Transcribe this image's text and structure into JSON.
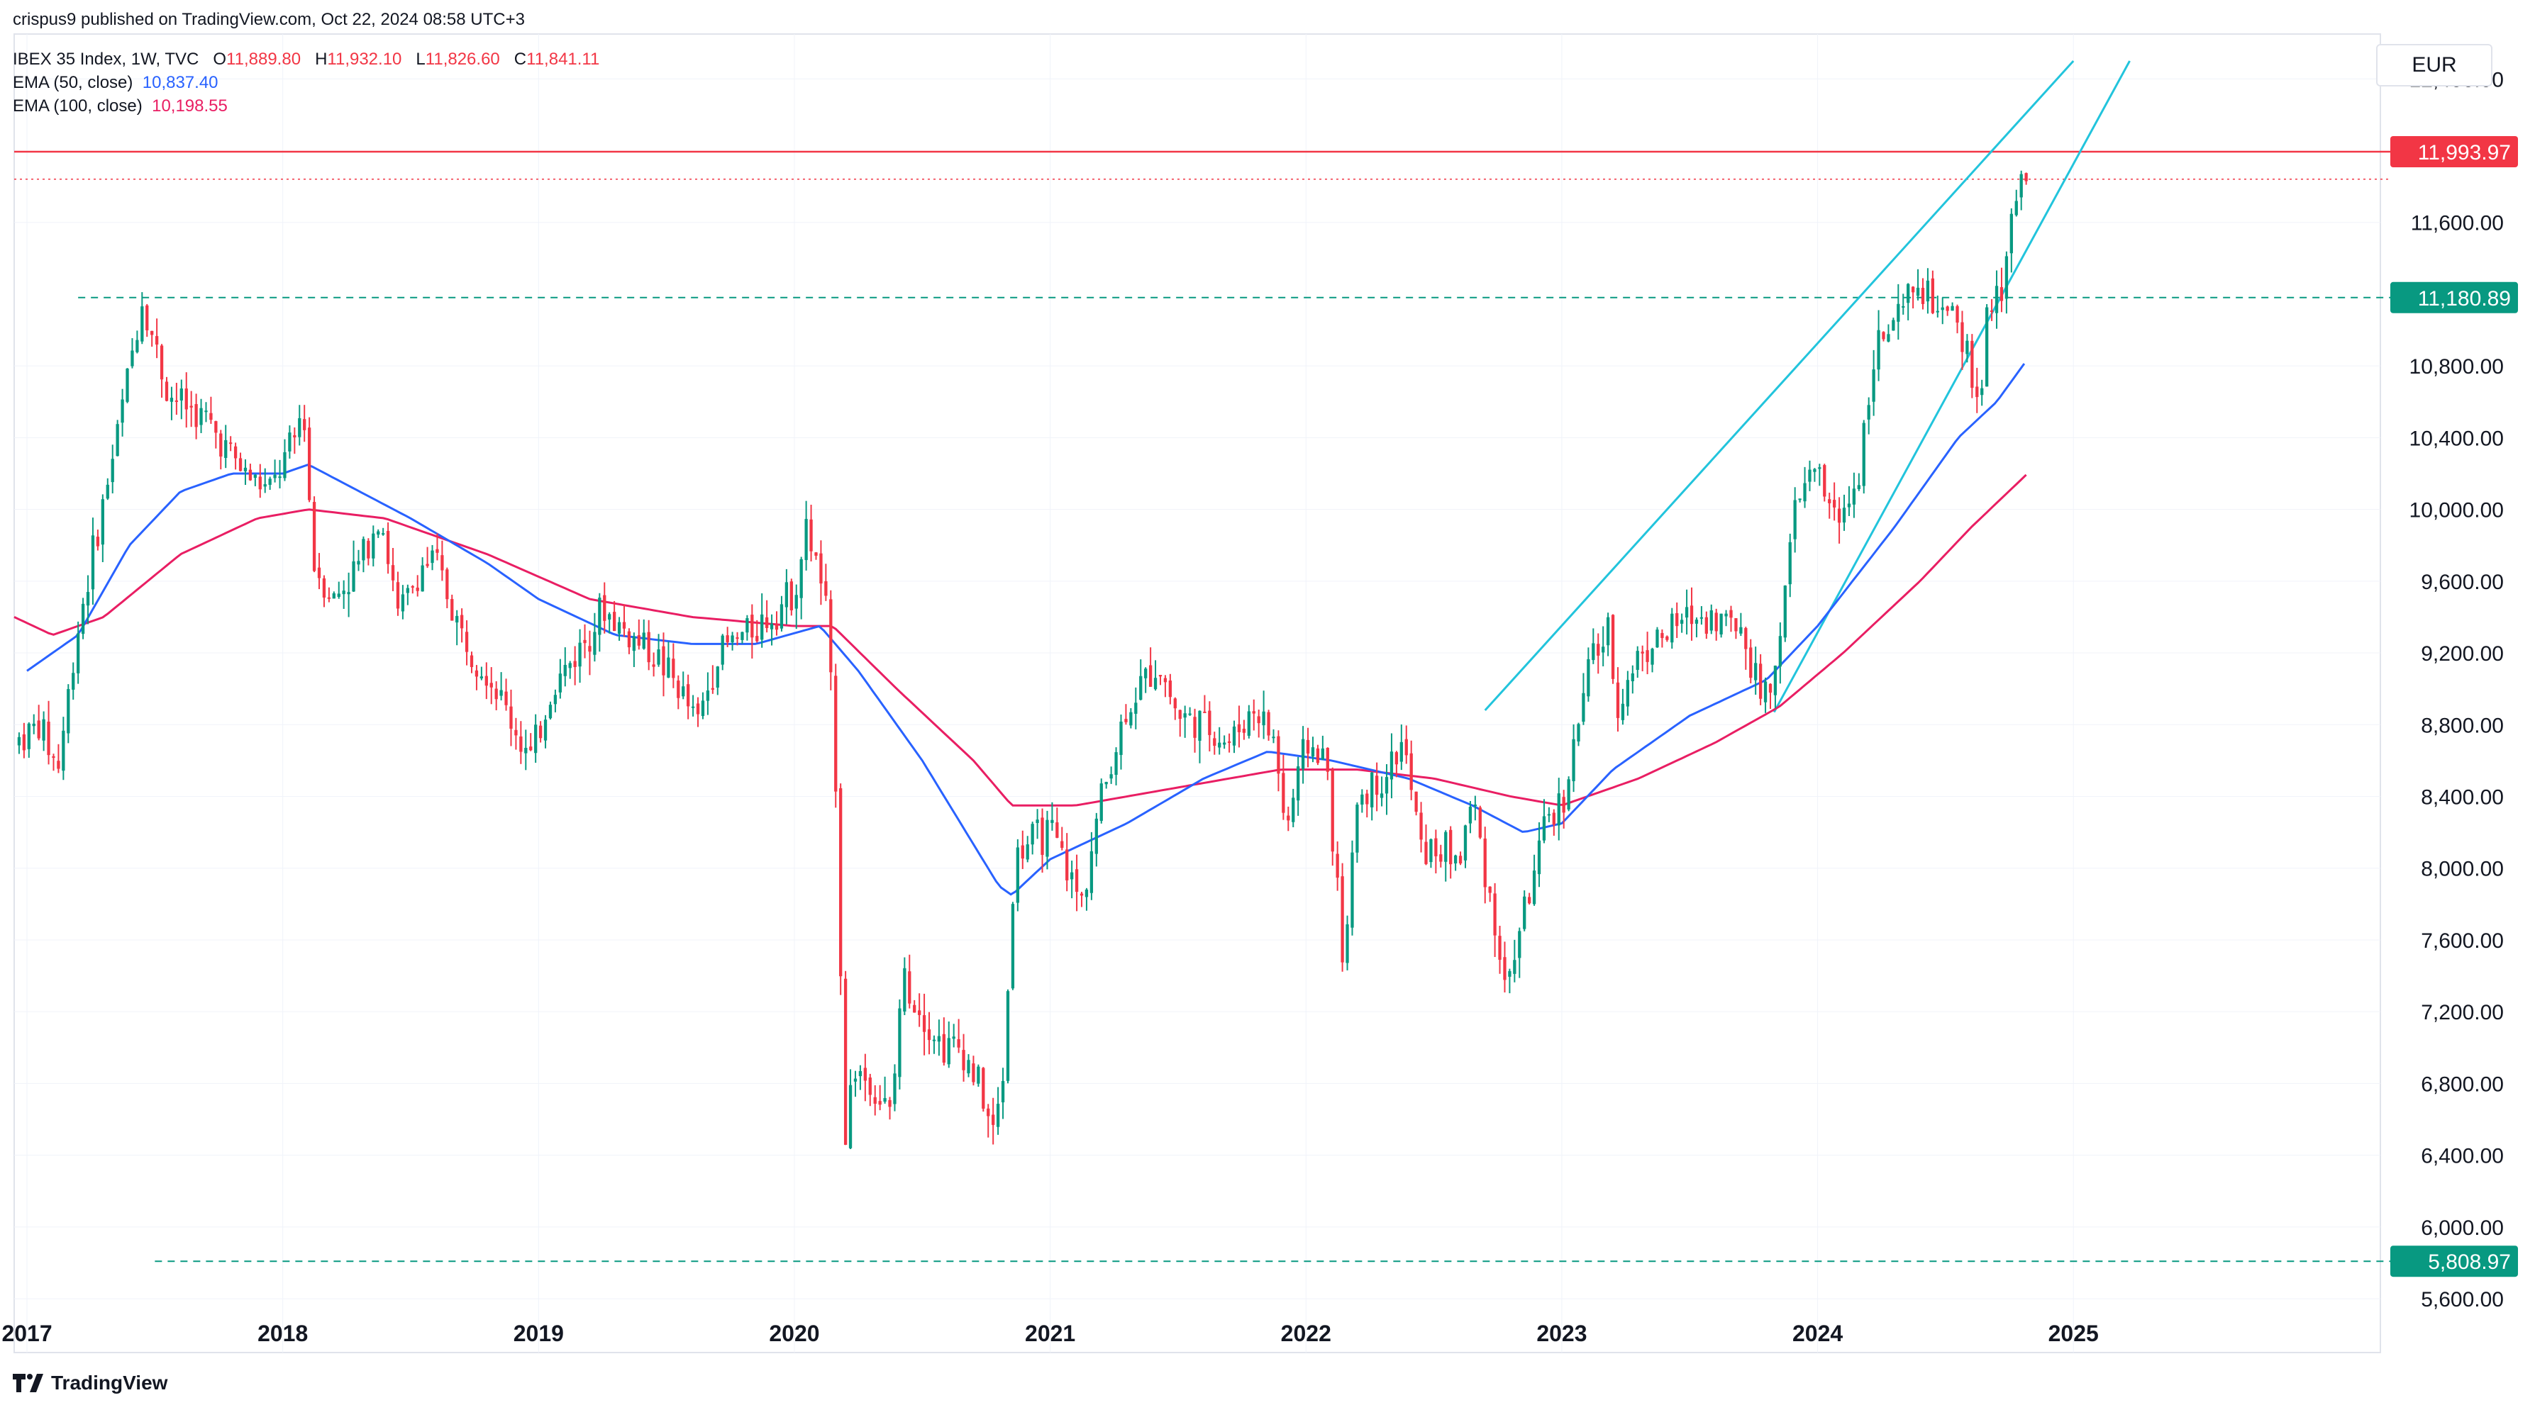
{
  "header": {
    "publisher_line": "crispus9 published on TradingView.com, Oct 22, 2024 08:58 UTC+3",
    "symbol": "IBEX 35 Index, 1W, TVC",
    "open_label": "O",
    "open": "11,889.80",
    "high_label": "H",
    "high": "11,932.10",
    "low_label": "L",
    "low": "11,826.60",
    "close_label": "C",
    "close": "11,841.11",
    "ema50_label": "EMA (50, close)",
    "ema50_value": "10,837.40",
    "ema100_label": "EMA (100, close)",
    "ema100_value": "10,198.55"
  },
  "currency": "EUR",
  "footer": {
    "brand": "TradingView"
  },
  "chart_data": {
    "type": "candlestick",
    "interval": "1W",
    "ylim": [
      5300,
      12650
    ],
    "xlim": [
      2016.95,
      2026.2
    ],
    "y_ticks": [
      "12,400.00",
      "11,600.00",
      "10,800.00",
      "10,400.00",
      "10,000.00",
      "9,600.00",
      "9,200.00",
      "8,800.00",
      "8,400.00",
      "8,000.00",
      "7,600.00",
      "7,200.00",
      "6,800.00",
      "6,400.00",
      "6,000.00",
      "5,600.00"
    ],
    "y_tick_values": [
      12400,
      11600,
      10800,
      10400,
      10000,
      9600,
      9200,
      8800,
      8400,
      8000,
      7600,
      7200,
      6800,
      6400,
      6000,
      5600
    ],
    "x_ticks": [
      "2017",
      "2018",
      "2019",
      "2020",
      "2021",
      "2022",
      "2023",
      "2024",
      "2025"
    ],
    "x_tick_values": [
      2017,
      2018,
      2019,
      2020,
      2021,
      2022,
      2023,
      2024,
      2025
    ],
    "horizontal_levels": [
      {
        "label": "11,993.97",
        "value": 11993.97,
        "style": "solid",
        "color": "#f23645"
      },
      {
        "label": "11,180.89",
        "value": 11180.89,
        "style": "dashed",
        "color": "#089981"
      },
      {
        "label": "5,808.97",
        "value": 5808.97,
        "style": "dashed",
        "color": "#089981"
      }
    ],
    "last_price_value": 11841.11,
    "price_anchors": [
      [
        2016.95,
        8700
      ],
      [
        2017.05,
        8800
      ],
      [
        2017.12,
        8550
      ],
      [
        2017.2,
        9350
      ],
      [
        2017.35,
        10400
      ],
      [
        2017.45,
        11180
      ],
      [
        2017.55,
        10650
      ],
      [
        2017.7,
        10500
      ],
      [
        2017.85,
        10200
      ],
      [
        2017.95,
        10100
      ],
      [
        2018.05,
        10400
      ],
      [
        2018.08,
        10600
      ],
      [
        2018.12,
        9700
      ],
      [
        2018.2,
        9500
      ],
      [
        2018.3,
        9700
      ],
      [
        2018.38,
        10000
      ],
      [
        2018.45,
        9400
      ],
      [
        2018.55,
        9700
      ],
      [
        2018.6,
        9700
      ],
      [
        2018.7,
        9300
      ],
      [
        2018.8,
        9100
      ],
      [
        2018.9,
        8800
      ],
      [
        2018.97,
        8600
      ],
      [
        2019.05,
        9000
      ],
      [
        2019.15,
        9200
      ],
      [
        2019.25,
        9450
      ],
      [
        2019.35,
        9300
      ],
      [
        2019.45,
        9200
      ],
      [
        2019.55,
        9000
      ],
      [
        2019.62,
        8800
      ],
      [
        2019.7,
        9200
      ],
      [
        2019.8,
        9300
      ],
      [
        2019.9,
        9400
      ],
      [
        2020.0,
        9550
      ],
      [
        2020.05,
        9900
      ],
      [
        2020.12,
        9500
      ],
      [
        2020.16,
        8600
      ],
      [
        2020.18,
        7500
      ],
      [
        2020.2,
        6500
      ],
      [
        2020.23,
        6900
      ],
      [
        2020.3,
        6800
      ],
      [
        2020.38,
        6600
      ],
      [
        2020.42,
        7400
      ],
      [
        2020.5,
        7200
      ],
      [
        2020.58,
        7000
      ],
      [
        2020.65,
        7000
      ],
      [
        2020.72,
        6800
      ],
      [
        2020.78,
        6500
      ],
      [
        2020.82,
        6900
      ],
      [
        2020.86,
        8050
      ],
      [
        2020.92,
        8150
      ],
      [
        2021.0,
        8200
      ],
      [
        2021.05,
        8050
      ],
      [
        2021.12,
        7800
      ],
      [
        2021.2,
        8400
      ],
      [
        2021.3,
        8900
      ],
      [
        2021.42,
        9150
      ],
      [
        2021.5,
        8850
      ],
      [
        2021.6,
        8800
      ],
      [
        2021.7,
        8700
      ],
      [
        2021.8,
        8900
      ],
      [
        2021.88,
        8700
      ],
      [
        2021.92,
        8200
      ],
      [
        2022.0,
        8700
      ],
      [
        2022.08,
        8600
      ],
      [
        2022.15,
        7400
      ],
      [
        2022.2,
        8400
      ],
      [
        2022.3,
        8500
      ],
      [
        2022.38,
        8700
      ],
      [
        2022.45,
        8100
      ],
      [
        2022.55,
        8100
      ],
      [
        2022.6,
        8050
      ],
      [
        2022.65,
        8400
      ],
      [
        2022.7,
        8000
      ],
      [
        2022.75,
        7600
      ],
      [
        2022.78,
        7300
      ],
      [
        2022.84,
        7700
      ],
      [
        2022.9,
        8000
      ],
      [
        2022.95,
        8300
      ],
      [
        2023.0,
        8350
      ],
      [
        2023.05,
        8700
      ],
      [
        2023.12,
        9200
      ],
      [
        2023.18,
        9300
      ],
      [
        2023.22,
        8900
      ],
      [
        2023.3,
        9200
      ],
      [
        2023.4,
        9300
      ],
      [
        2023.5,
        9400
      ],
      [
        2023.6,
        9400
      ],
      [
        2023.7,
        9350
      ],
      [
        2023.77,
        9000
      ],
      [
        2023.81,
        8950
      ],
      [
        2023.87,
        9500
      ],
      [
        2023.92,
        10100
      ],
      [
        2024.0,
        10200
      ],
      [
        2024.08,
        9900
      ],
      [
        2024.16,
        10200
      ],
      [
        2024.22,
        10900
      ],
      [
        2024.3,
        11000
      ],
      [
        2024.38,
        11250
      ],
      [
        2024.48,
        11100
      ],
      [
        2024.55,
        11000
      ],
      [
        2024.6,
        10800
      ],
      [
        2024.63,
        10500
      ],
      [
        2024.66,
        11050
      ],
      [
        2024.72,
        11200
      ],
      [
        2024.76,
        11700
      ],
      [
        2024.8,
        11850
      ],
      [
        2024.82,
        11841
      ]
    ],
    "ema50_anchors": [
      [
        2017.0,
        9100
      ],
      [
        2017.2,
        9300
      ],
      [
        2017.4,
        9800
      ],
      [
        2017.6,
        10100
      ],
      [
        2017.8,
        10200
      ],
      [
        2018.0,
        10200
      ],
      [
        2018.1,
        10250
      ],
      [
        2018.3,
        10100
      ],
      [
        2018.5,
        9950
      ],
      [
        2018.8,
        9700
      ],
      [
        2019.0,
        9500
      ],
      [
        2019.3,
        9300
      ],
      [
        2019.6,
        9250
      ],
      [
        2019.85,
        9250
      ],
      [
        2020.1,
        9350
      ],
      [
        2020.25,
        9100
      ],
      [
        2020.5,
        8600
      ],
      [
        2020.8,
        7900
      ],
      [
        2020.85,
        7850
      ],
      [
        2021.0,
        8050
      ],
      [
        2021.3,
        8250
      ],
      [
        2021.6,
        8500
      ],
      [
        2021.85,
        8650
      ],
      [
        2022.1,
        8600
      ],
      [
        2022.4,
        8500
      ],
      [
        2022.65,
        8350
      ],
      [
        2022.85,
        8200
      ],
      [
        2023.0,
        8250
      ],
      [
        2023.2,
        8550
      ],
      [
        2023.5,
        8850
      ],
      [
        2023.8,
        9050
      ],
      [
        2024.0,
        9350
      ],
      [
        2024.3,
        9900
      ],
      [
        2024.55,
        10400
      ],
      [
        2024.7,
        10600
      ],
      [
        2024.82,
        10837
      ]
    ],
    "ema100_anchors": [
      [
        2016.95,
        9400
      ],
      [
        2017.1,
        9300
      ],
      [
        2017.3,
        9400
      ],
      [
        2017.6,
        9750
      ],
      [
        2017.9,
        9950
      ],
      [
        2018.1,
        10000
      ],
      [
        2018.4,
        9950
      ],
      [
        2018.8,
        9750
      ],
      [
        2019.2,
        9500
      ],
      [
        2019.6,
        9400
      ],
      [
        2020.0,
        9350
      ],
      [
        2020.15,
        9350
      ],
      [
        2020.4,
        9000
      ],
      [
        2020.7,
        8600
      ],
      [
        2020.85,
        8350
      ],
      [
        2021.1,
        8350
      ],
      [
        2021.5,
        8450
      ],
      [
        2021.9,
        8550
      ],
      [
        2022.2,
        8550
      ],
      [
        2022.5,
        8500
      ],
      [
        2022.8,
        8400
      ],
      [
        2023.0,
        8350
      ],
      [
        2023.3,
        8500
      ],
      [
        2023.6,
        8700
      ],
      [
        2023.85,
        8900
      ],
      [
        2024.1,
        9200
      ],
      [
        2024.4,
        9600
      ],
      [
        2024.6,
        9900
      ],
      [
        2024.82,
        10199
      ]
    ],
    "trendlines": [
      {
        "from": [
          2022.7,
          8880
        ],
        "to": [
          2025.0,
          12500
        ],
        "color": "#22c4dc"
      },
      {
        "from": [
          2023.83,
          8870
        ],
        "to": [
          2025.22,
          12500
        ],
        "color": "#22c4dc"
      }
    ],
    "colors": {
      "up": "#089981",
      "down": "#f23645",
      "ema50": "#2962ff",
      "ema100": "#e91e63",
      "grid": "#f0f3fa"
    }
  }
}
